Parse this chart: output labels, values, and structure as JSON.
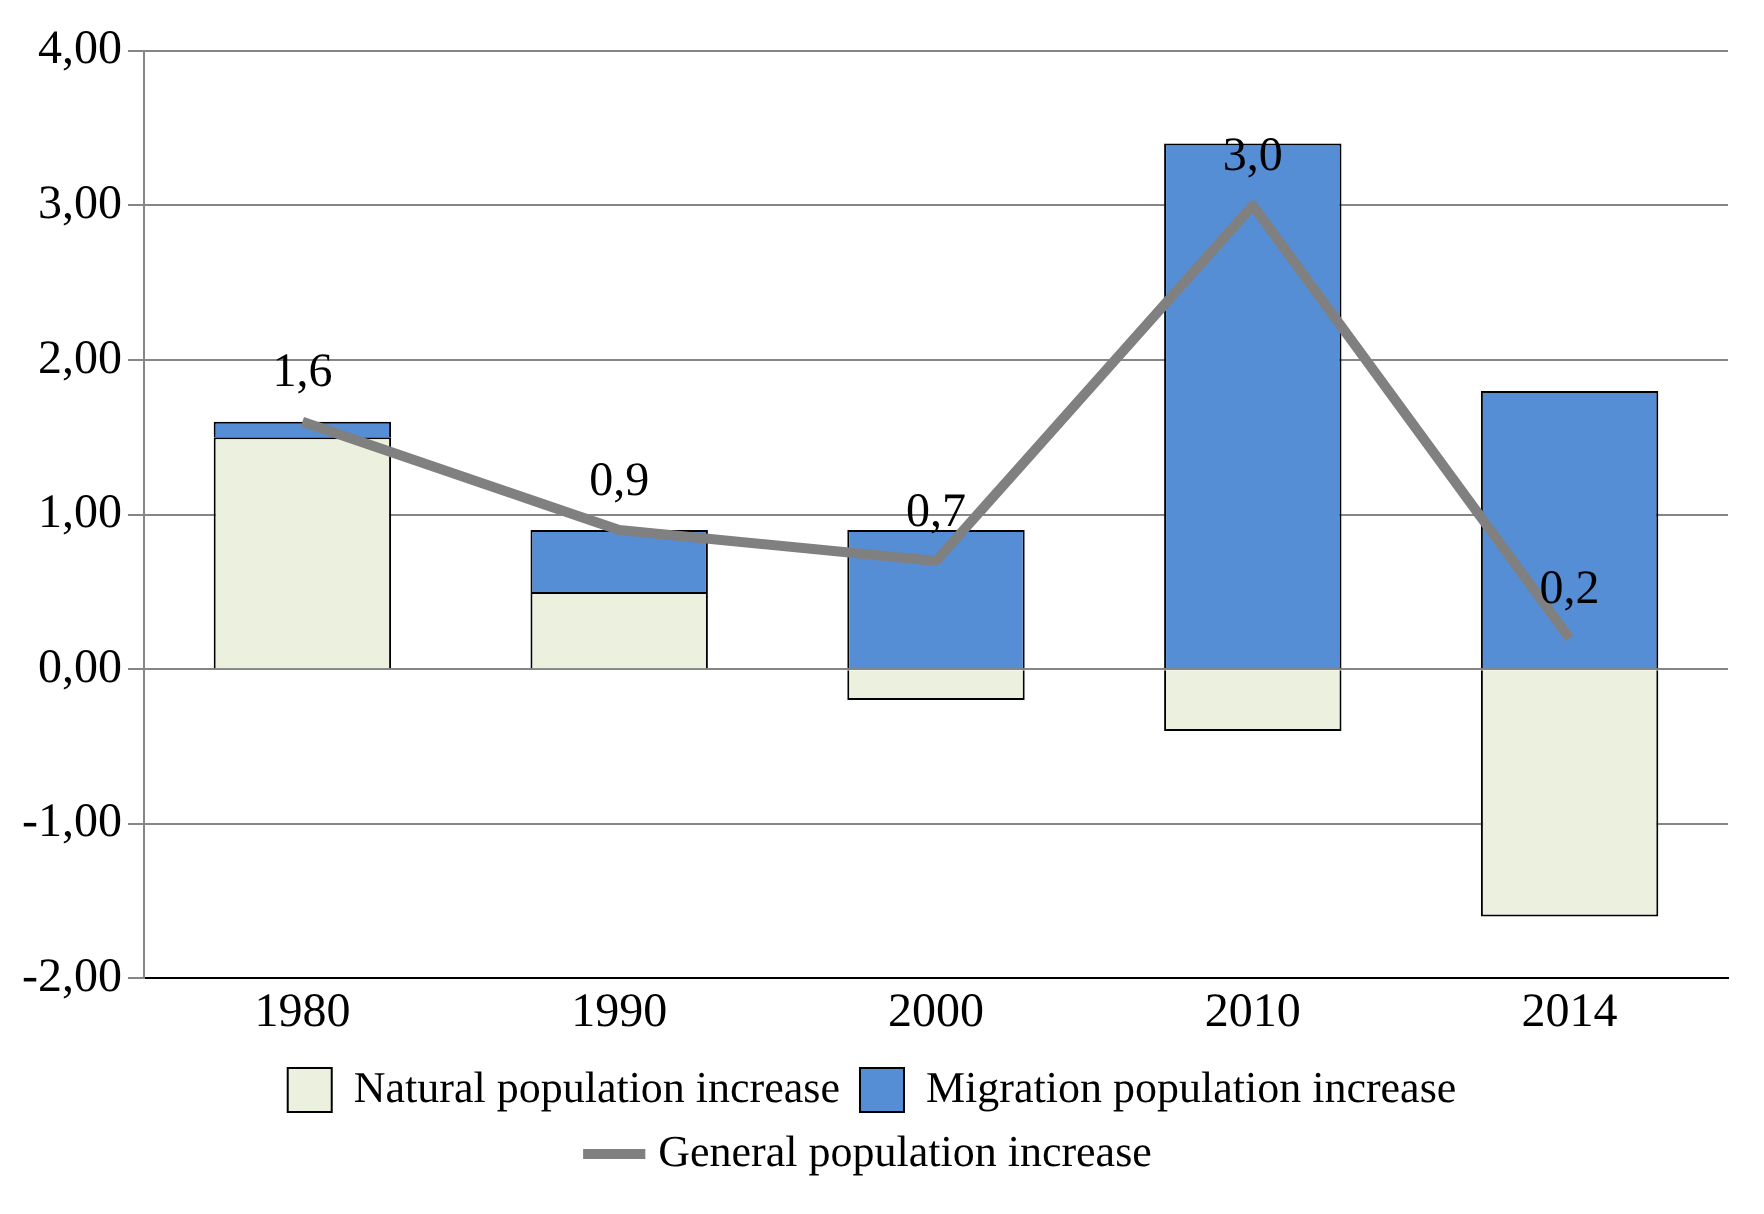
{
  "chart_data": {
    "type": "bar",
    "stacked": true,
    "categories": [
      "1980",
      "1990",
      "2000",
      "2010",
      "2014"
    ],
    "series": [
      {
        "name": "Natural population increase",
        "color": "#ebf1de",
        "values": [
          1.5,
          0.5,
          -0.2,
          -0.4,
          -1.6
        ]
      },
      {
        "name": "Migration population increase",
        "color": "#558ed5",
        "values": [
          0.1,
          0.4,
          0.9,
          3.4,
          1.8
        ]
      },
      {
        "name": "General population increase",
        "type": "line",
        "color": "#808080",
        "values": [
          1.6,
          0.9,
          0.7,
          3.0,
          0.2
        ],
        "value_labels": [
          "1,6",
          "0,9",
          "0,7",
          "3,0",
          "0,2"
        ]
      }
    ],
    "ylim": [
      -2,
      4
    ],
    "yticks": [
      {
        "value": -2,
        "label": "-2,00"
      },
      {
        "value": -1,
        "label": "-1,00"
      },
      {
        "value": 0,
        "label": "0,00"
      },
      {
        "value": 1,
        "label": "1,00"
      },
      {
        "value": 2,
        "label": "2,00"
      },
      {
        "value": 3,
        "label": "3,00"
      },
      {
        "value": 4,
        "label": "4,00"
      }
    ],
    "grid": "y",
    "legend": "bottom",
    "marker": "none",
    "line_style": "solid"
  }
}
